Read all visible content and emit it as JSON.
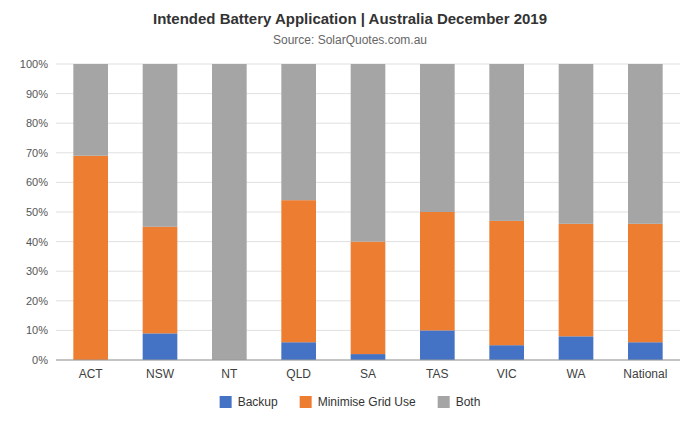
{
  "chart_data": {
    "type": "bar",
    "title": "Intended Battery Application | Australia December 2019",
    "subtitle": "Source: SolarQuotes.com.au",
    "categories": [
      "ACT",
      "NSW",
      "NT",
      "QLD",
      "SA",
      "TAS",
      "VIC",
      "WA",
      "National"
    ],
    "series": [
      {
        "name": "Backup",
        "color": "#4472c4",
        "values": [
          0,
          9,
          0,
          6,
          2,
          10,
          5,
          8,
          6
        ]
      },
      {
        "name": "Minimise Grid Use",
        "color": "#ed7d31",
        "values": [
          69,
          36,
          0,
          48,
          38,
          40,
          42,
          38,
          40
        ]
      },
      {
        "name": "Both",
        "color": "#a5a5a5",
        "values": [
          31,
          55,
          100,
          46,
          60,
          50,
          53,
          54,
          54
        ]
      }
    ],
    "ylim": [
      0,
      100
    ],
    "yticks": [
      {
        "value": 0,
        "label": "0%"
      },
      {
        "value": 10,
        "label": "10%"
      },
      {
        "value": 20,
        "label": "20%"
      },
      {
        "value": 30,
        "label": "30%"
      },
      {
        "value": 40,
        "label": "40%"
      },
      {
        "value": 50,
        "label": "50%"
      },
      {
        "value": 60,
        "label": "60%"
      },
      {
        "value": 70,
        "label": "70%"
      },
      {
        "value": 80,
        "label": "80%"
      },
      {
        "value": 90,
        "label": "90%"
      },
      {
        "value": 100,
        "label": "100%"
      }
    ],
    "stacked": true,
    "grid": true,
    "legend": "bottom"
  }
}
